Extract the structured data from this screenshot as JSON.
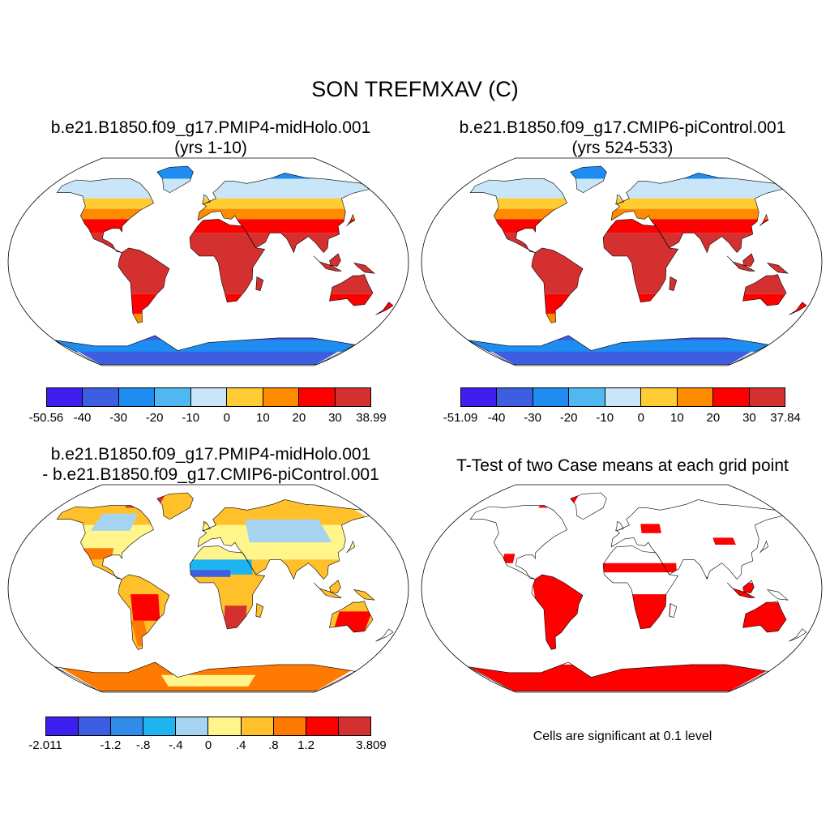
{
  "title": "SON TREFMXAV (C)",
  "panels": [
    {
      "id": "case1",
      "title_line1": "b.e21.B1850.f09_g17.PMIP4-midHolo.001",
      "title_line2": "(yrs 1-10)"
    },
    {
      "id": "case2",
      "title_line1": "b.e21.B1850.f09_g17.CMIP6-piControl.001",
      "title_line2": "(yrs 524-533)"
    },
    {
      "id": "diff",
      "title_line1": "b.e21.B1850.f09_g17.PMIP4-midHolo.001",
      "title_line2": "- b.e21.B1850.f09_g17.CMIP6-piControl.001"
    },
    {
      "id": "ttest",
      "title_line1": "T-Test of two Case means at each grid point",
      "title_line2": ""
    }
  ],
  "colorbars": {
    "case1": {
      "colors": [
        "#3f1ff0",
        "#3d5ee0",
        "#1e8cf0",
        "#50b8f0",
        "#c8e6f8",
        "#ffcc33",
        "#ff8c00",
        "#ff0000",
        "#d43030"
      ],
      "labels": [
        "-50.56",
        "-40",
        "-30",
        "-20",
        "-10",
        "0",
        "10",
        "20",
        "30",
        "38.99"
      ]
    },
    "case2": {
      "colors": [
        "#3f1ff0",
        "#3d5ee0",
        "#1e8cf0",
        "#50b8f0",
        "#c8e6f8",
        "#ffcc33",
        "#ff8c00",
        "#ff0000",
        "#d43030"
      ],
      "labels": [
        "-51.09",
        "-40",
        "-30",
        "-20",
        "-10",
        "0",
        "10",
        "20",
        "30",
        "37.84"
      ]
    },
    "diff": {
      "colors": [
        "#3f1ff0",
        "#3d5ee0",
        "#2f8ce8",
        "#1eb4f0",
        "#a6d4f0",
        "#fff58a",
        "#ffc02a",
        "#ff7a00",
        "#ff0000",
        "#d43030"
      ],
      "labels": [
        "-2.011",
        "",
        "-1.2",
        "-.8",
        "-.4",
        "0",
        ".4",
        ".8",
        "1.2",
        "",
        "3.809"
      ]
    }
  },
  "significance_note": "Cells are significant at 0.1 level",
  "colors": {
    "land_warm": "#d43030",
    "sig_red": "#ff0000",
    "outline": "#000000"
  }
}
